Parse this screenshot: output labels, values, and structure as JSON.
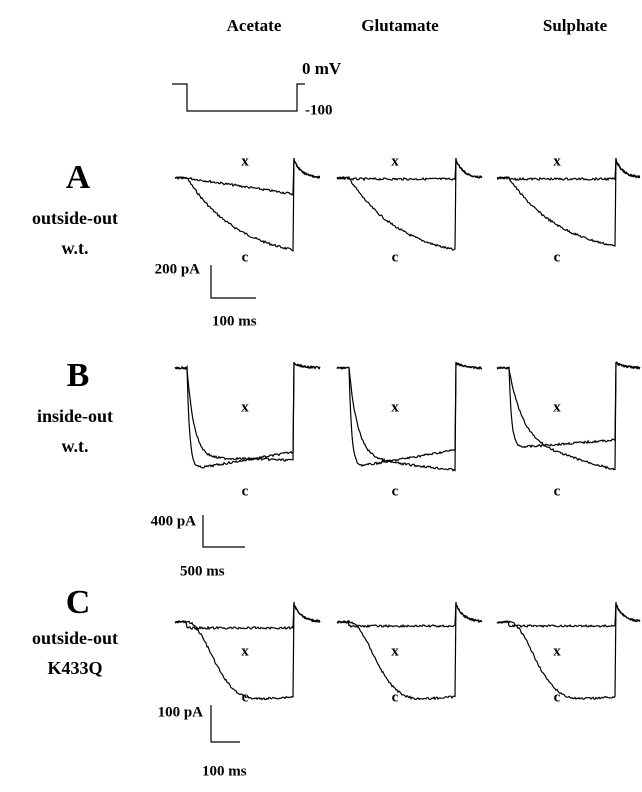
{
  "columns": [
    "Acetate",
    "Glutamate",
    "Sulphate"
  ],
  "protocol": {
    "top_label": "0 mV",
    "bottom_label": "-100"
  },
  "panels": [
    {
      "letter": "A",
      "labels": [
        "outside-out",
        "w.t."
      ],
      "trace_labels": [
        "x",
        "c"
      ],
      "scale_bar": {
        "current": "200 pA",
        "time": "100 ms"
      }
    },
    {
      "letter": "B",
      "labels": [
        "inside-out",
        "w.t."
      ],
      "trace_labels": [
        "x",
        "c"
      ],
      "scale_bar": {
        "current": "400 pA",
        "time": "500 ms"
      }
    },
    {
      "letter": "C",
      "labels": [
        "outside-out",
        "K433Q"
      ],
      "trace_labels": [
        "x",
        "c"
      ],
      "scale_bar": {
        "current": "100 pA",
        "time": "100 ms"
      }
    }
  ]
}
